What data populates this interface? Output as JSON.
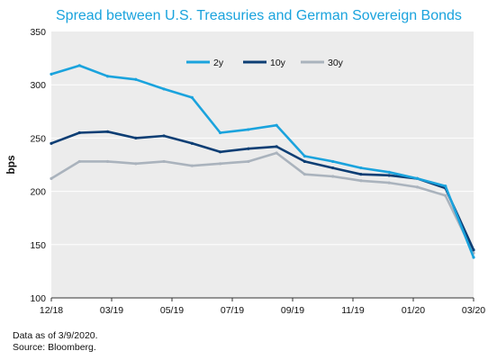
{
  "chart_data": {
    "type": "line",
    "title": "Spread between U.S. Treasuries and German Sovereign Bonds",
    "ylabel": "bps",
    "xlabel": "",
    "ylim": [
      100,
      350
    ],
    "yticks": [
      100,
      150,
      200,
      250,
      300,
      350
    ],
    "xticks": [
      "12/18",
      "03/19",
      "05/19",
      "07/19",
      "09/19",
      "11/19",
      "01/20",
      "03/20"
    ],
    "grid": "horizontal",
    "legend": "top-center",
    "x_months": [
      "2018-12",
      "2019-01",
      "2019-02",
      "2019-03",
      "2019-04",
      "2019-05",
      "2019-06",
      "2019-07",
      "2019-08",
      "2019-09",
      "2019-10",
      "2019-11",
      "2019-12",
      "2020-01",
      "2020-02",
      "2020-03"
    ],
    "series": [
      {
        "name": "2y",
        "color": "#1aa3dd",
        "values": [
          310,
          318,
          308,
          305,
          296,
          288,
          255,
          258,
          262,
          233,
          228,
          222,
          218,
          212,
          205,
          138
        ]
      },
      {
        "name": "10y",
        "color": "#0d3e74",
        "values": [
          245,
          255,
          256,
          250,
          252,
          245,
          237,
          240,
          242,
          228,
          222,
          216,
          215,
          212,
          203,
          145
        ]
      },
      {
        "name": "30y",
        "color": "#aab3bd",
        "values": [
          212,
          228,
          228,
          226,
          228,
          224,
          226,
          228,
          236,
          216,
          214,
          210,
          208,
          204,
          196,
          142
        ]
      }
    ]
  },
  "notes": {
    "line1": "Data as of 3/9/2020.",
    "line2": "Source: Bloomberg."
  }
}
